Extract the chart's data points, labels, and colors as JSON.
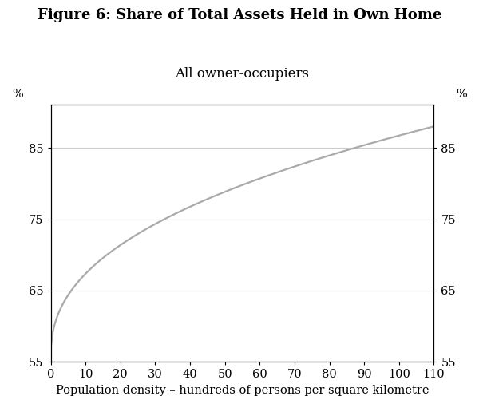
{
  "title": "Figure 6: Share of Total Assets Held in Own Home",
  "subtitle": "All owner-occupiers",
  "xlabel": "Population density – hundreds of persons per square kilometre",
  "ylabel_left": "%",
  "ylabel_right": "%",
  "xlim": [
    0,
    110
  ],
  "ylim": [
    55,
    91
  ],
  "xticks": [
    0,
    10,
    20,
    30,
    40,
    50,
    60,
    70,
    80,
    90,
    100,
    110
  ],
  "yticks": [
    55,
    65,
    75,
    85
  ],
  "line_color": "#aaaaaa",
  "line_width": 1.6,
  "background_color": "#ffffff",
  "grid_color": "#cccccc",
  "curve_start_y": 55.5,
  "curve_end_y": 88.0,
  "curve_power": 0.42,
  "title_fontsize": 13,
  "subtitle_fontsize": 12,
  "xlabel_fontsize": 10.5,
  "tick_fontsize": 10.5,
  "font_family": "serif"
}
